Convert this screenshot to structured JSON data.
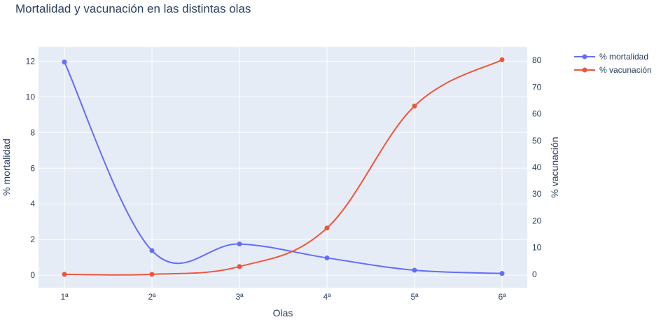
{
  "chart_data": {
    "type": "line",
    "title": "Mortalidad y vacunación en las distintas olas",
    "xlabel": "Olas",
    "ylabel_left": "% mortalidad",
    "ylabel_right": "% vacunación",
    "categories": [
      "1ª",
      "2ª",
      "3ª",
      "4ª",
      "5ª",
      "6ª"
    ],
    "y_left_range": [
      -0.7,
      12.8
    ],
    "y_left_ticks": [
      0,
      2,
      4,
      6,
      8,
      10,
      12
    ],
    "y_right_range": [
      -5,
      85
    ],
    "y_right_ticks": [
      0,
      10,
      20,
      30,
      40,
      50,
      60,
      70,
      80
    ],
    "grid": true,
    "legend_position": "top-right",
    "series": [
      {
        "name": "% mortalidad",
        "axis": "left",
        "color": "#636efa",
        "values": [
          11.95,
          1.38,
          1.75,
          0.97,
          0.28,
          0.1
        ]
      },
      {
        "name": "% vacunación",
        "axis": "right",
        "color": "#ef553b",
        "values": [
          0,
          0,
          2.9,
          17.3,
          62.9,
          80.2
        ]
      }
    ]
  }
}
